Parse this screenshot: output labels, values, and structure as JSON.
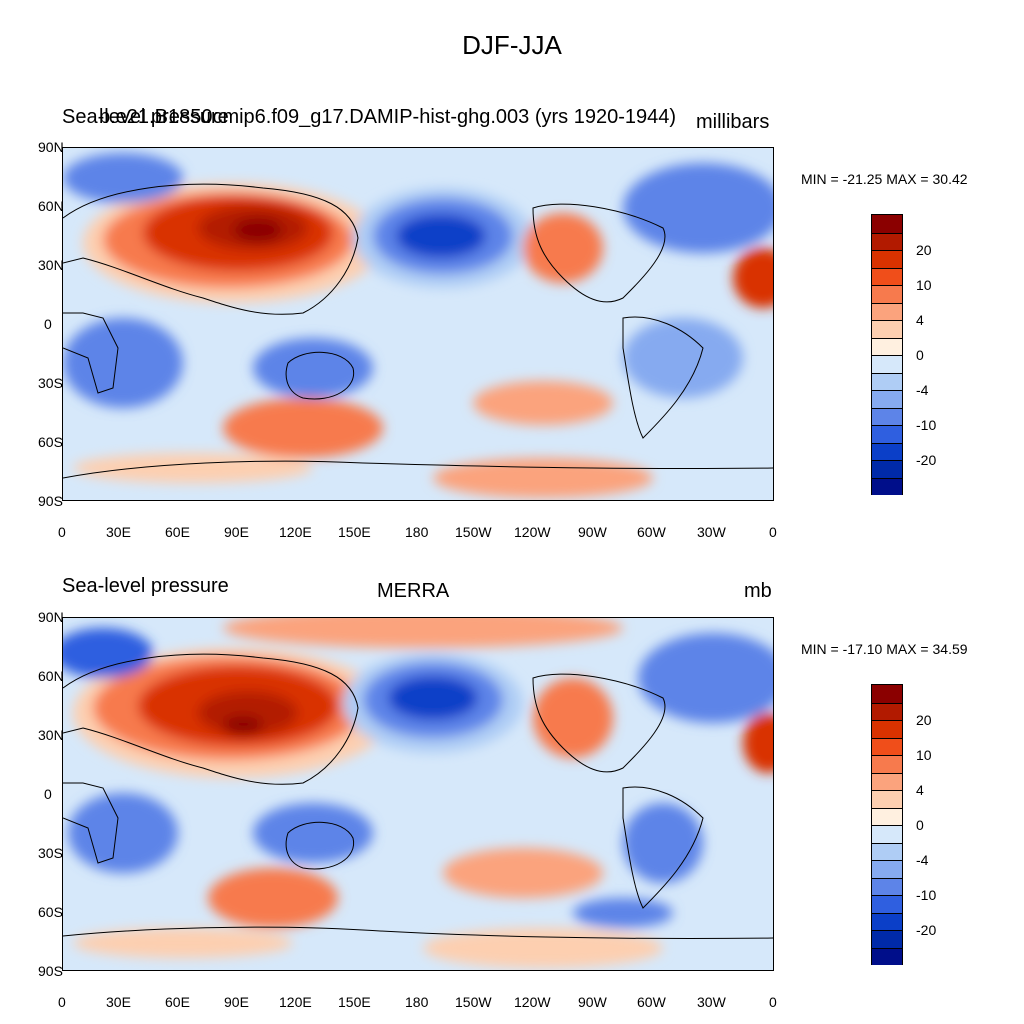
{
  "title": "DJF-JJA",
  "colorbar": {
    "labels": [
      "20",
      "10",
      "4",
      "0",
      "-4",
      "-10",
      "-20"
    ],
    "colors": [
      "#8b0000",
      "#b21a00",
      "#d93200",
      "#f04e1a",
      "#f77a4d",
      "#fba37d",
      "#fdcfb0",
      "#fff0e0",
      "#d6e8fa",
      "#afcdf5",
      "#86aaf0",
      "#5d84e8",
      "#2f5fe0",
      "#0b3fc8",
      "#002aa8",
      "#000e8a"
    ]
  },
  "axes": {
    "lat_ticks": [
      "90N",
      "60N",
      "30N",
      "0",
      "30S",
      "60S",
      "90S"
    ],
    "lon_ticks": [
      "0",
      "30E",
      "60E",
      "90E",
      "120E",
      "150E",
      "180",
      "150W",
      "120W",
      "90W",
      "60W",
      "30W",
      "0"
    ]
  },
  "panels": [
    {
      "left_title": "Sea-level pressure",
      "center_title": "b.e21.B1850cmip6.f09_g17.DAMIP-hist-ghg.003 (yrs 1920-1944)",
      "right_title": "millibars",
      "minmax": "MIN = -21.25 MAX =  30.42"
    },
    {
      "left_title": "Sea-level pressure",
      "center_title": "MERRA",
      "right_title": "mb",
      "minmax": "MIN = -17.10 MAX =  34.59"
    }
  ]
}
